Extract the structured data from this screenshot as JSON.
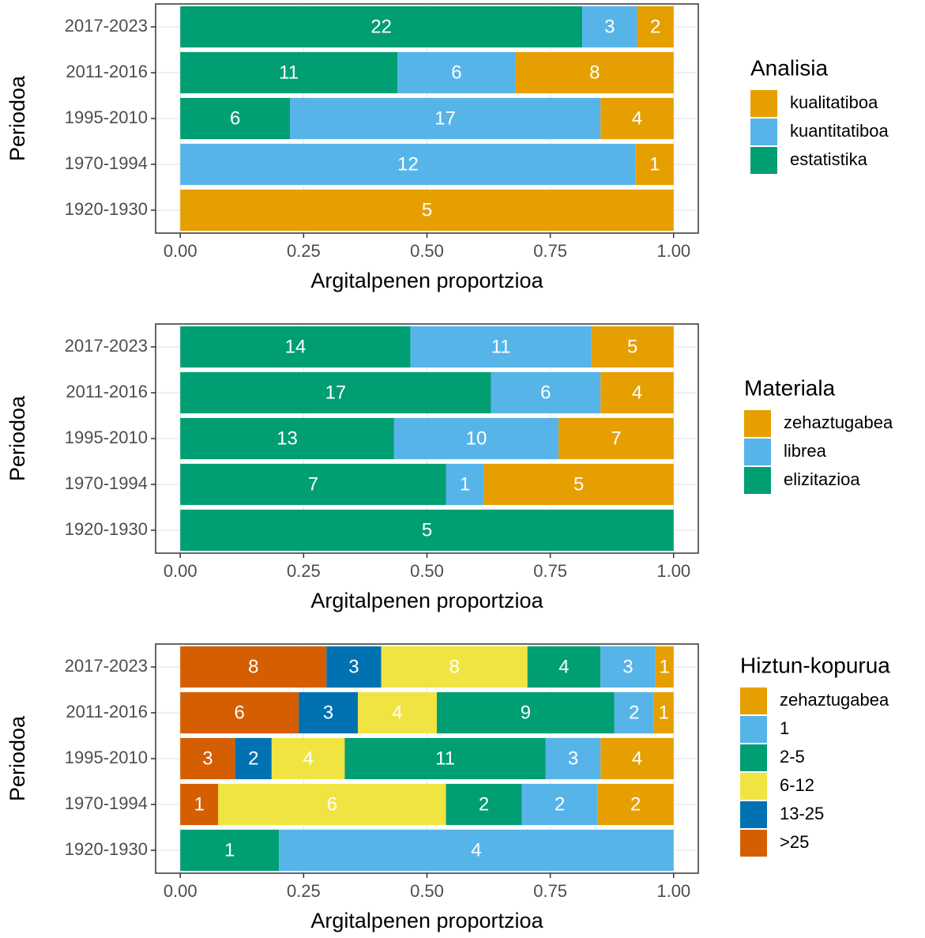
{
  "chart_data": [
    {
      "type": "bar",
      "orientation": "horizontal",
      "stack": "percent",
      "xlabel": "Argitalpenen proportzioa",
      "ylabel": "Periodoa",
      "legend_title": "Analisia",
      "legend": "right",
      "grid": true,
      "categories": [
        "1920-1930",
        "1970-1994",
        "1995-2010",
        "2011-2016",
        "2017-2023"
      ],
      "series": [
        {
          "name": "kualitatiboa",
          "color": "#E69F00",
          "values": [
            5,
            1,
            4,
            8,
            2
          ]
        },
        {
          "name": "kuantitatiboa",
          "color": "#56B4E9",
          "values": [
            null,
            12,
            17,
            6,
            3
          ]
        },
        {
          "name": "estatistika",
          "color": "#009E73",
          "values": [
            null,
            null,
            6,
            11,
            22
          ]
        }
      ],
      "xlim": [
        -0.05,
        1.05
      ],
      "xticks": [
        {
          "value": 0,
          "label": "0.00"
        },
        {
          "value": 0.25,
          "label": "0.25"
        },
        {
          "value": 0.5,
          "label": "0.50"
        },
        {
          "value": 0.75,
          "label": "0.75"
        },
        {
          "value": 1,
          "label": "1.00"
        }
      ]
    },
    {
      "type": "bar",
      "orientation": "horizontal",
      "stack": "percent",
      "xlabel": "Argitalpenen proportzioa",
      "ylabel": "Periodoa",
      "legend_title": "Materiala",
      "legend": "right",
      "grid": true,
      "categories": [
        "1920-1930",
        "1970-1994",
        "1995-2010",
        "2011-2016",
        "2017-2023"
      ],
      "series": [
        {
          "name": "zehaztugabea",
          "color": "#E69F00",
          "values": [
            null,
            5,
            7,
            4,
            5
          ]
        },
        {
          "name": "librea",
          "color": "#56B4E9",
          "values": [
            null,
            1,
            10,
            6,
            11
          ]
        },
        {
          "name": "elizitazioa",
          "color": "#009E73",
          "values": [
            5,
            7,
            13,
            17,
            14
          ]
        }
      ],
      "xlim": [
        -0.05,
        1.05
      ],
      "xticks": [
        {
          "value": 0,
          "label": "0.00"
        },
        {
          "value": 0.25,
          "label": "0.25"
        },
        {
          "value": 0.5,
          "label": "0.50"
        },
        {
          "value": 0.75,
          "label": "0.75"
        },
        {
          "value": 1,
          "label": "1.00"
        }
      ]
    },
    {
      "type": "bar",
      "orientation": "horizontal",
      "stack": "percent",
      "xlabel": "Argitalpenen proportzioa",
      "ylabel": "Periodoa",
      "legend_title": "Hiztun-kopurua",
      "legend": "right",
      "grid": true,
      "categories": [
        "1920-1930",
        "1970-1994",
        "1995-2010",
        "2011-2016",
        "2017-2023"
      ],
      "series": [
        {
          "name": "zehaztugabea",
          "color": "#E69F00",
          "values": [
            null,
            2,
            4,
            1,
            1
          ]
        },
        {
          "name": "1",
          "color": "#56B4E9",
          "values": [
            4,
            2,
            3,
            2,
            3
          ]
        },
        {
          "name": "2-5",
          "color": "#009E73",
          "values": [
            1,
            2,
            11,
            9,
            4
          ]
        },
        {
          "name": "6-12",
          "color": "#F0E442",
          "values": [
            null,
            6,
            4,
            4,
            8
          ]
        },
        {
          "name": "13-25",
          "color": "#0072B2",
          "values": [
            null,
            null,
            2,
            3,
            3
          ]
        },
        {
          "name": ">25",
          "color": "#D55E00",
          "values": [
            null,
            1,
            3,
            6,
            8
          ]
        }
      ],
      "xlim": [
        -0.05,
        1.05
      ],
      "xticks": [
        {
          "value": 0,
          "label": "0.00"
        },
        {
          "value": 0.25,
          "label": "0.25"
        },
        {
          "value": 0.5,
          "label": "0.50"
        },
        {
          "value": 0.75,
          "label": "0.75"
        },
        {
          "value": 1,
          "label": "1.00"
        }
      ]
    }
  ]
}
